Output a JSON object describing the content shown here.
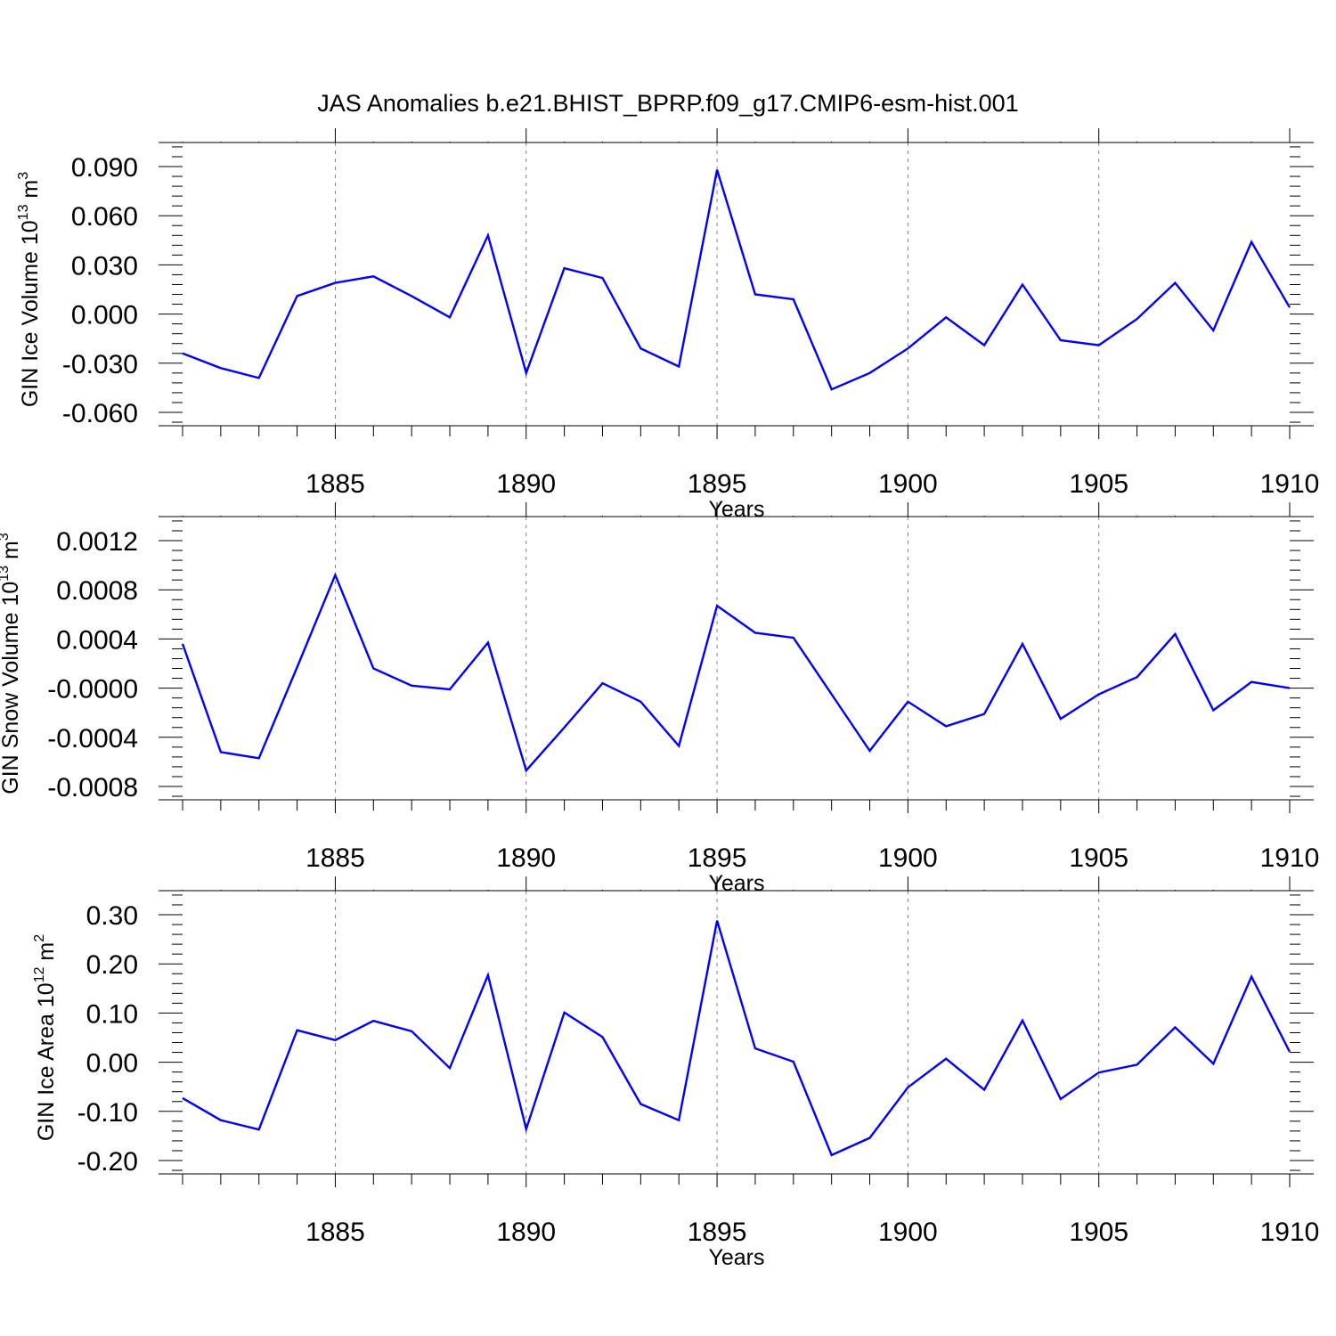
{
  "title": "JAS Anomalies b.e21.BHIST_BPRP.f09_g17.CMIP6-esm-hist.001",
  "colors": {
    "line": "#0000ff",
    "axes": "#000000",
    "grid": "#808080"
  },
  "chart_data": [
    {
      "type": "line",
      "xlabel": "Years",
      "ylabel_parts": {
        "text": "GIN Ice Volume 10",
        "exp": "13",
        "unit": " m",
        "unit_exp": "3"
      },
      "x": [
        1881,
        1882,
        1883,
        1884,
        1885,
        1886,
        1887,
        1888,
        1889,
        1890,
        1891,
        1892,
        1893,
        1894,
        1895,
        1896,
        1897,
        1898,
        1899,
        1900,
        1901,
        1902,
        1903,
        1904,
        1905,
        1906,
        1907,
        1908,
        1909,
        1910
      ],
      "values": [
        -0.024,
        -0.033,
        -0.039,
        0.011,
        0.019,
        0.023,
        0.011,
        -0.002,
        0.048,
        -0.036,
        0.028,
        0.022,
        -0.021,
        -0.032,
        0.088,
        0.012,
        0.009,
        -0.046,
        -0.036,
        -0.021,
        -0.002,
        -0.019,
        0.018,
        -0.016,
        -0.019,
        -0.003,
        0.019,
        -0.01,
        0.044,
        0.004
      ],
      "xlim": [
        1881,
        1910
      ],
      "ylim": [
        -0.06,
        0.09
      ],
      "xticks": [
        1885,
        1890,
        1895,
        1900,
        1905,
        1910
      ],
      "yticks": [
        -0.06,
        -0.03,
        0.0,
        0.03,
        0.06,
        0.09
      ],
      "ytick_labels": [
        "-0.060",
        "-0.030",
        "0.000",
        "0.030",
        "0.060",
        "0.090"
      ],
      "grid": "vertical dashed at major x ticks"
    },
    {
      "type": "line",
      "xlabel": "Years",
      "ylabel_parts": {
        "text": "GIN Snow Volume 10",
        "exp": "13",
        "unit": " m",
        "unit_exp": "3"
      },
      "x": [
        1881,
        1882,
        1883,
        1884,
        1885,
        1886,
        1887,
        1888,
        1889,
        1890,
        1891,
        1892,
        1893,
        1894,
        1895,
        1896,
        1897,
        1898,
        1899,
        1900,
        1901,
        1902,
        1903,
        1904,
        1905,
        1906,
        1907,
        1908,
        1909,
        1910
      ],
      "values": [
        0.00036,
        -0.00052,
        -0.00057,
        0.00017,
        0.00092,
        0.00016,
        2e-05,
        -1e-05,
        0.00037,
        -0.00067,
        -0.00032,
        4e-05,
        -0.00011,
        -0.00047,
        0.00067,
        0.00045,
        0.00041,
        -5e-05,
        -0.00051,
        -0.00011,
        -0.00031,
        -0.00021,
        0.00036,
        -0.00025,
        -5e-05,
        9e-05,
        0.00044,
        -0.00018,
        5e-05,
        0.0
      ],
      "xlim": [
        1881,
        1910
      ],
      "ylim": [
        -0.0009,
        0.0013
      ],
      "xticks": [
        1885,
        1890,
        1895,
        1900,
        1905,
        1910
      ],
      "yticks": [
        -0.0008,
        -0.0004,
        0.0,
        0.0004,
        0.0008,
        0.0012
      ],
      "ytick_labels": [
        "-0.0008",
        "-0.0004",
        "-0.0000",
        "0.0004",
        "0.0008",
        "0.0012"
      ],
      "grid": "vertical dashed at major x ticks"
    },
    {
      "type": "line",
      "xlabel": "Years",
      "ylabel_parts": {
        "text": "GIN Ice Area 10",
        "exp": "12",
        "unit": " m",
        "unit_exp": "2"
      },
      "x": [
        1881,
        1882,
        1883,
        1884,
        1885,
        1886,
        1887,
        1888,
        1889,
        1890,
        1891,
        1892,
        1893,
        1894,
        1895,
        1896,
        1897,
        1898,
        1899,
        1900,
        1901,
        1902,
        1903,
        1904,
        1905,
        1906,
        1907,
        1908,
        1909,
        1910
      ],
      "values": [
        -0.073,
        -0.118,
        -0.137,
        0.065,
        0.045,
        0.084,
        0.063,
        -0.012,
        0.177,
        -0.136,
        0.101,
        0.051,
        -0.085,
        -0.118,
        0.288,
        0.028,
        0.001,
        -0.189,
        -0.154,
        -0.051,
        0.007,
        -0.056,
        0.085,
        -0.075,
        -0.021,
        -0.005,
        0.071,
        -0.003,
        0.174,
        0.021
      ],
      "xlim": [
        1881,
        1910
      ],
      "ylim": [
        -0.2,
        0.3
      ],
      "xticks": [
        1885,
        1890,
        1895,
        1900,
        1905,
        1910
      ],
      "yticks": [
        -0.2,
        -0.1,
        0.0,
        0.1,
        0.2,
        0.3
      ],
      "ytick_labels": [
        "-0.20",
        "-0.10",
        "0.00",
        "0.10",
        "0.20",
        "0.30"
      ],
      "grid": "vertical dashed at major x ticks"
    }
  ]
}
